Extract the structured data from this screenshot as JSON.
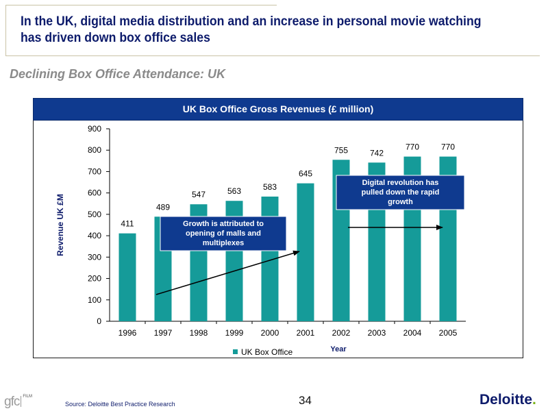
{
  "slide": {
    "headline": "In the UK, digital media distribution and an increase in personal movie watching has driven down box office sales",
    "subtitle": "Declining Box Office Attendance: UK",
    "source": "Source: Deloitte Best Practice Research",
    "page_number": "34",
    "brand": "Deloitte",
    "brand_dot": ".",
    "logo_text": "gfc",
    "logo_sub": "FILM"
  },
  "chart_data": {
    "type": "bar",
    "title": "UK Box Office Gross Revenues (£ million)",
    "xlabel": "Year",
    "ylabel": "Revenue UK £M",
    "categories": [
      "1996",
      "1997",
      "1998",
      "1999",
      "2000",
      "2001",
      "2002",
      "2003",
      "2004",
      "2005"
    ],
    "series": [
      {
        "name": "UK Box Office",
        "values": [
          411,
          489,
          547,
          563,
          583,
          645,
          755,
          742,
          770,
          770
        ]
      }
    ],
    "ylim": [
      0,
      900
    ],
    "yticks": [
      0,
      100,
      200,
      300,
      400,
      500,
      600,
      700,
      800,
      900
    ],
    "data_labels": true,
    "legend": "bottom",
    "grid": false,
    "colors": {
      "bar": "#159b99",
      "callout_bg": "#0f3a8f",
      "callout_text": "#ffffff"
    },
    "annotations": [
      {
        "text": "Growth is attributed to opening of malls and multiplexes",
        "lines": [
          "Growth is attributed to",
          "opening of malls and",
          "multiplexes"
        ]
      },
      {
        "text": "Digital revolution has pulled down the rapid growth",
        "lines": [
          "Digital revolution has",
          "pulled down the rapid",
          "growth"
        ]
      }
    ]
  }
}
